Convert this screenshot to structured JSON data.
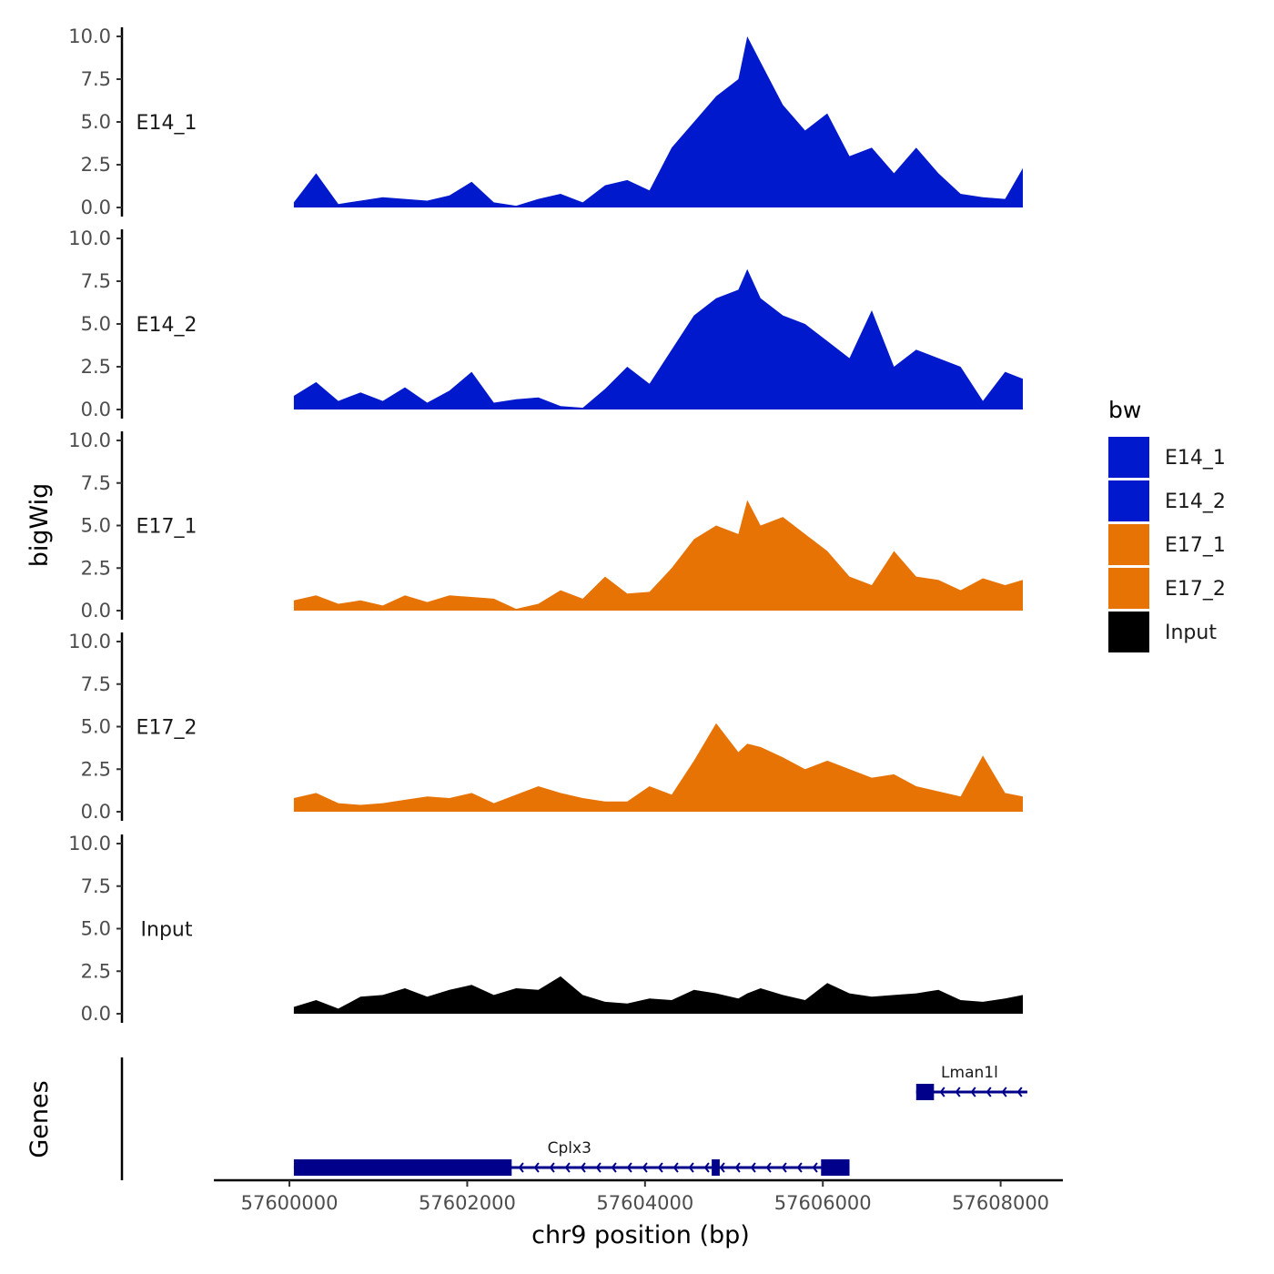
{
  "chart_data": {
    "type": "area",
    "title": "",
    "ylabel": "bigWig",
    "xlabel": "chr9 position (bp)",
    "genes_label": "Genes",
    "xlim": [
      57599150,
      57608700
    ],
    "ylim": [
      0,
      10
    ],
    "y_ticks": [
      0,
      2.5,
      5,
      7.5,
      10
    ],
    "y_tick_labels": [
      "0.0",
      "2.5",
      "5.0",
      "7.5",
      "10.0"
    ],
    "x_ticks": [
      57600000,
      57602000,
      57604000,
      57606000,
      57608000
    ],
    "x_tick_labels": [
      "57600000",
      "57602000",
      "57604000",
      "57606000",
      "57608000"
    ],
    "legend": {
      "title": "bw",
      "entries": [
        {
          "name": "E14_1",
          "color": "#0019cc"
        },
        {
          "name": "E14_2",
          "color": "#0019cc"
        },
        {
          "name": "E17_1",
          "color": "#e87305"
        },
        {
          "name": "E17_2",
          "color": "#e87305"
        },
        {
          "name": "Input",
          "color": "#000000"
        }
      ]
    },
    "x": [
      57600050,
      57600300,
      57600550,
      57600800,
      57601050,
      57601300,
      57601550,
      57601800,
      57602050,
      57602300,
      57602550,
      57602800,
      57603050,
      57603300,
      57603550,
      57603800,
      57604050,
      57604300,
      57604550,
      57604800,
      57605050,
      57605150,
      57605300,
      57605550,
      57605800,
      57606050,
      57606300,
      57606550,
      57606800,
      57607050,
      57607300,
      57607550,
      57607800,
      57608050,
      57608250
    ],
    "series": [
      {
        "name": "E14_1",
        "color": "#0019cc",
        "values": [
          0.3,
          2.0,
          0.2,
          0.4,
          0.6,
          0.5,
          0.4,
          0.7,
          1.5,
          0.3,
          0.1,
          0.5,
          0.8,
          0.3,
          1.3,
          1.6,
          1.0,
          3.5,
          5.0,
          6.5,
          7.5,
          10.0,
          8.5,
          6.0,
          4.5,
          5.5,
          3.0,
          3.5,
          2.0,
          3.5,
          2.0,
          0.8,
          0.6,
          0.5,
          2.3
        ]
      },
      {
        "name": "E14_2",
        "color": "#0019cc",
        "values": [
          0.8,
          1.6,
          0.5,
          1.0,
          0.5,
          1.3,
          0.4,
          1.1,
          2.2,
          0.4,
          0.6,
          0.7,
          0.2,
          0.1,
          1.2,
          2.5,
          1.5,
          3.5,
          5.5,
          6.5,
          7.0,
          8.2,
          6.5,
          5.5,
          5.0,
          4.0,
          3.0,
          5.8,
          2.5,
          3.5,
          3.0,
          2.5,
          0.5,
          2.2,
          1.8
        ]
      },
      {
        "name": "E17_1",
        "color": "#e87305",
        "values": [
          0.6,
          0.9,
          0.4,
          0.6,
          0.3,
          0.9,
          0.5,
          0.9,
          0.8,
          0.7,
          0.1,
          0.4,
          1.2,
          0.7,
          2.0,
          1.0,
          1.1,
          2.5,
          4.2,
          5.0,
          4.5,
          6.5,
          5.0,
          5.5,
          4.5,
          3.5,
          2.0,
          1.5,
          3.5,
          2.0,
          1.8,
          1.2,
          1.9,
          1.5,
          1.8
        ]
      },
      {
        "name": "E17_2",
        "color": "#e87305",
        "values": [
          0.8,
          1.1,
          0.5,
          0.4,
          0.5,
          0.7,
          0.9,
          0.8,
          1.1,
          0.5,
          1.0,
          1.5,
          1.1,
          0.8,
          0.6,
          0.6,
          1.5,
          1.0,
          3.0,
          5.2,
          3.5,
          4.0,
          3.8,
          3.2,
          2.5,
          3.0,
          2.5,
          2.0,
          2.2,
          1.5,
          1.2,
          0.9,
          3.3,
          1.1,
          0.9
        ]
      },
      {
        "name": "Input",
        "color": "#000000",
        "values": [
          0.4,
          0.8,
          0.3,
          1.0,
          1.1,
          1.5,
          1.0,
          1.4,
          1.7,
          1.1,
          1.5,
          1.4,
          2.2,
          1.1,
          0.7,
          0.6,
          0.9,
          0.8,
          1.4,
          1.2,
          0.9,
          1.2,
          1.5,
          1.1,
          0.8,
          1.8,
          1.2,
          1.0,
          1.1,
          1.2,
          1.4,
          0.8,
          0.7,
          0.9,
          1.1
        ]
      }
    ],
    "genes": [
      {
        "name": "Cplx3",
        "start": 57600050,
        "end": 57606300,
        "strand": "-",
        "row": 0,
        "label_pos": 57603150,
        "exons": [
          [
            57600050,
            57602500
          ],
          [
            57604750,
            57604840
          ],
          [
            57605980,
            57606300
          ]
        ]
      },
      {
        "name": "Lman1l",
        "start": 57607050,
        "end": 57608300,
        "strand": "-",
        "row": 1,
        "label_pos": 57607650,
        "exons": [
          [
            57607050,
            57607250
          ]
        ]
      }
    ]
  }
}
